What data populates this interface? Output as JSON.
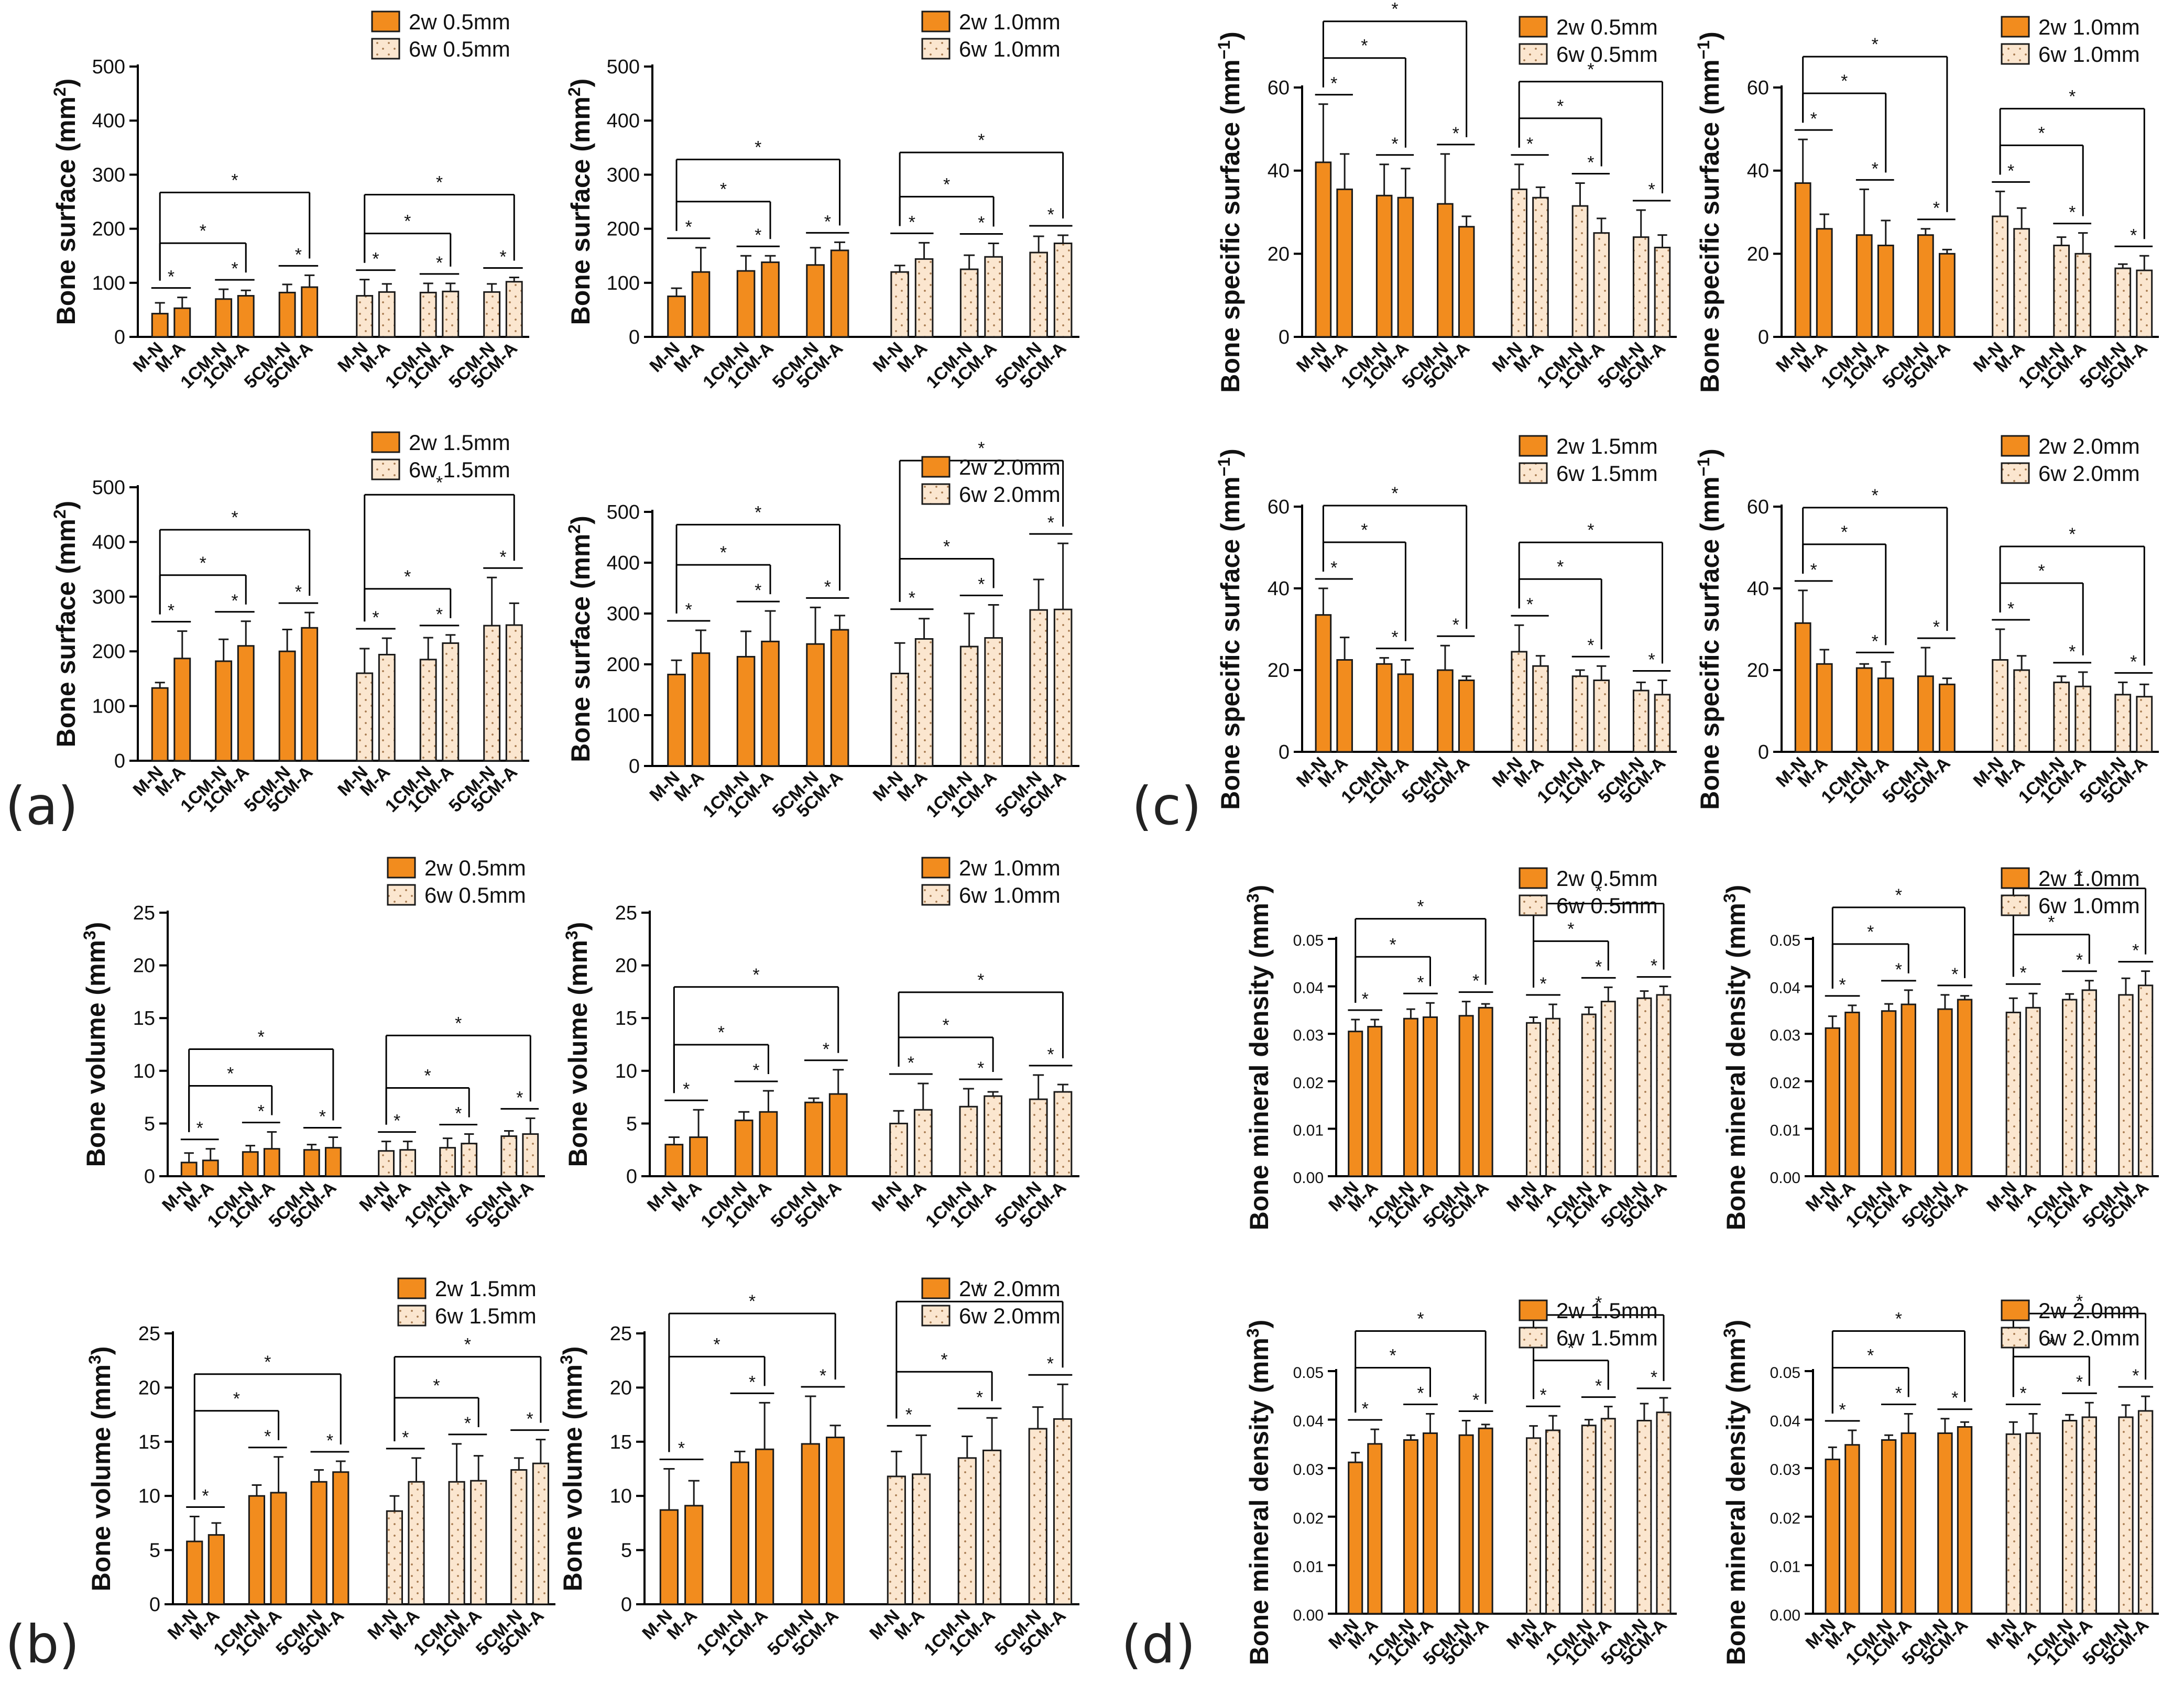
{
  "panel_letters": {
    "a": "(a)",
    "b": "(b)",
    "c": "(c)",
    "d": "(d)"
  },
  "colors": {
    "orange": "#f28c1e",
    "bar_outline": "#1a1a1a",
    "dotted_fill": "#fbe6cf",
    "dot": "#a77b50",
    "axis": "#000000"
  },
  "legend_entries": {
    "solid": "2w",
    "dotted": "6w"
  },
  "category_labels": [
    "M-N",
    "M-A",
    "1CM-N",
    "1CM-A",
    "5CM-N",
    "5CM-A",
    "M-N",
    "M-A",
    "1CM-N",
    "1CM-A",
    "5CM-N",
    "5CM-A"
  ],
  "chart_data": [
    {
      "id": "a1",
      "type": "bar",
      "panel": "a",
      "ylabel": "Bone surface (mm²)",
      "ylabel_base": "Bone surface (mm",
      "ylabel_sup": "2",
      "ylabel_tail": ")",
      "ylim": [
        0,
        500
      ],
      "yticks": [
        "0",
        "100",
        "200",
        "300",
        "400",
        "500"
      ],
      "legend": [
        "2w 0.5mm",
        "6w 0.5mm"
      ],
      "grid": false,
      "values": [
        43,
        53,
        70,
        76,
        82,
        92,
        76,
        83,
        82,
        84,
        83,
        102
      ],
      "errors": [
        20,
        20,
        18,
        10,
        15,
        22,
        30,
        15,
        17,
        15,
        15,
        8
      ]
    },
    {
      "id": "a2",
      "type": "bar",
      "panel": "a",
      "ylabel": "Bone surface (mm²)",
      "ylabel_base": "Bone surface (mm",
      "ylabel_sup": "2",
      "ylabel_tail": ")",
      "ylim": [
        0,
        500
      ],
      "yticks": [
        "0",
        "100",
        "200",
        "300",
        "400",
        "500"
      ],
      "legend": [
        "2w 1.0mm",
        "6w 1.0mm"
      ],
      "grid": false,
      "values": [
        75,
        120,
        122,
        138,
        133,
        160,
        120,
        144,
        125,
        148,
        156,
        173
      ],
      "errors": [
        15,
        45,
        28,
        12,
        32,
        15,
        12,
        30,
        26,
        25,
        30,
        15
      ]
    },
    {
      "id": "a3",
      "type": "bar",
      "panel": "a",
      "ylabel": "Bone surface (mm²)",
      "ylabel_base": "Bone surface (mm",
      "ylabel_sup": "2",
      "ylabel_tail": ")",
      "ylim": [
        0,
        500
      ],
      "yticks": [
        "0",
        "100",
        "200",
        "300",
        "400",
        "500"
      ],
      "legend": [
        "2w 1.5mm",
        "6w 1.5mm"
      ],
      "grid": false,
      "values": [
        133,
        187,
        182,
        210,
        200,
        243,
        160,
        194,
        185,
        215,
        247,
        248
      ],
      "errors": [
        10,
        50,
        40,
        45,
        40,
        28,
        45,
        30,
        40,
        15,
        88,
        40
      ]
    },
    {
      "id": "a4",
      "type": "bar",
      "panel": "a",
      "ylabel": "Bone surface (mm²)",
      "ylabel_base": "Bone surface (mm",
      "ylabel_sup": "2",
      "ylabel_tail": ")",
      "ylim": [
        0,
        500
      ],
      "yticks": [
        "0",
        "100",
        "200",
        "300",
        "400",
        "500"
      ],
      "legend": [
        "2w 2.0mm",
        "6w 2.0mm"
      ],
      "grid": false,
      "values": [
        180,
        222,
        215,
        245,
        240,
        268,
        182,
        250,
        235,
        252,
        307,
        308
      ],
      "errors": [
        28,
        45,
        50,
        60,
        72,
        28,
        60,
        40,
        65,
        65,
        60,
        130
      ]
    },
    {
      "id": "b1",
      "type": "bar",
      "panel": "b",
      "ylabel": "Bone volume (mm³)",
      "ylabel_base": "Bone volume (mm",
      "ylabel_sup": "3",
      "ylabel_tail": ")",
      "ylim": [
        0,
        25
      ],
      "yticks": [
        "0",
        "5",
        "10",
        "15",
        "20",
        "25"
      ],
      "legend": [
        "2w 0.5mm",
        "6w 0.5mm"
      ],
      "grid": false,
      "values": [
        1.3,
        1.5,
        2.3,
        2.6,
        2.5,
        2.7,
        2.4,
        2.5,
        2.7,
        3.1,
        3.8,
        4.0
      ],
      "errors": [
        0.9,
        1.1,
        0.6,
        1.6,
        0.5,
        1.0,
        0.9,
        0.8,
        0.9,
        0.9,
        0.5,
        1.5
      ]
    },
    {
      "id": "b2",
      "type": "bar",
      "panel": "b",
      "ylabel": "Bone volume (mm³)",
      "ylabel_base": "Bone volume (mm",
      "ylabel_sup": "3",
      "ylabel_tail": ")",
      "ylim": [
        0,
        25
      ],
      "yticks": [
        "0",
        "5",
        "10",
        "15",
        "20",
        "25"
      ],
      "legend": [
        "2w 1.0mm",
        "6w 1.0mm"
      ],
      "grid": false,
      "values": [
        3.0,
        3.7,
        5.3,
        6.1,
        7.0,
        7.8,
        5.0,
        6.3,
        6.6,
        7.6,
        7.3,
        8.0
      ],
      "errors": [
        0.7,
        2.6,
        0.8,
        2.0,
        0.4,
        2.3,
        1.2,
        2.5,
        1.7,
        0.4,
        2.3,
        0.7
      ]
    },
    {
      "id": "b3",
      "type": "bar",
      "panel": "b",
      "ylabel": "Bone volume (mm³)",
      "ylabel_base": "Bone volume (mm",
      "ylabel_sup": "3",
      "ylabel_tail": ")",
      "ylim": [
        0,
        25
      ],
      "yticks": [
        "0",
        "5",
        "10",
        "15",
        "20",
        "25"
      ],
      "legend": [
        "2w 1.5mm",
        "6w 1.5mm"
      ],
      "grid": false,
      "values": [
        5.8,
        6.4,
        10.0,
        10.3,
        11.3,
        12.2,
        8.6,
        11.3,
        11.3,
        11.4,
        12.4,
        13.0
      ],
      "errors": [
        2.3,
        1.1,
        1.0,
        3.3,
        1.1,
        1.0,
        1.4,
        2.2,
        3.5,
        2.3,
        1.1,
        2.2
      ]
    },
    {
      "id": "b4",
      "type": "bar",
      "panel": "b",
      "ylabel": "Bone volume (mm³)",
      "ylabel_base": "Bone volume (mm",
      "ylabel_sup": "3",
      "ylabel_tail": ")",
      "ylim": [
        0,
        25
      ],
      "yticks": [
        "0",
        "5",
        "10",
        "15",
        "20",
        "25"
      ],
      "legend": [
        "2w 2.0mm",
        "6w 2.0mm"
      ],
      "grid": false,
      "values": [
        8.7,
        9.1,
        13.1,
        14.3,
        14.8,
        15.4,
        11.8,
        12.0,
        13.5,
        14.2,
        16.2,
        17.1
      ],
      "errors": [
        3.8,
        2.3,
        1.0,
        4.3,
        4.4,
        1.1,
        2.3,
        3.6,
        2.0,
        3.0,
        2.0,
        3.2
      ]
    },
    {
      "id": "c1",
      "type": "bar",
      "panel": "c",
      "ylabel": "Bone specific surface (mm⁻¹)",
      "ylabel_base": "Bone specific surface (mm",
      "ylabel_sup": "−1",
      "ylabel_tail": ")",
      "ylim": [
        0,
        60
      ],
      "yticks": [
        "0",
        "20",
        "40",
        "60"
      ],
      "legend": [
        "2w 0.5mm",
        "6w 0.5mm"
      ],
      "grid": false,
      "values": [
        42,
        35.5,
        34,
        33.5,
        32,
        26.5,
        35.5,
        33.5,
        31.5,
        25,
        24,
        21.5
      ],
      "errors": [
        14,
        8.5,
        7.5,
        7,
        12,
        2.5,
        6,
        2.5,
        5.5,
        3.5,
        6.5,
        3
      ]
    },
    {
      "id": "c2",
      "type": "bar",
      "panel": "c",
      "ylabel": "Bone specific surface (mm⁻¹)",
      "ylabel_base": "Bone specific surface (mm",
      "ylabel_sup": "−1",
      "ylabel_tail": ")",
      "ylim": [
        0,
        60
      ],
      "yticks": [
        "0",
        "20",
        "40",
        "60"
      ],
      "legend": [
        "2w 1.0mm",
        "6w 1.0mm"
      ],
      "grid": false,
      "values": [
        37,
        26,
        24.5,
        22,
        24.5,
        20,
        29,
        26,
        22,
        20,
        16.5,
        16
      ],
      "errors": [
        10.5,
        3.5,
        11,
        6,
        1.5,
        1,
        6,
        5,
        2,
        5,
        1,
        3.5
      ]
    },
    {
      "id": "c3",
      "type": "bar",
      "panel": "c",
      "ylabel": "Bone specific surface (mm⁻¹)",
      "ylabel_base": "Bone specific surface (mm",
      "ylabel_sup": "−1",
      "ylabel_tail": ")",
      "ylim": [
        0,
        60
      ],
      "yticks": [
        "0",
        "20",
        "40",
        "60"
      ],
      "legend": [
        "2w 1.5mm",
        "6w 1.5mm"
      ],
      "grid": false,
      "values": [
        33.5,
        22.5,
        21.5,
        19,
        20,
        17.5,
        24.5,
        21,
        18.5,
        17.5,
        15,
        14
      ],
      "errors": [
        6.5,
        5.5,
        1.5,
        3.5,
        6,
        1,
        6.5,
        2.5,
        1.5,
        3.5,
        2,
        3.5
      ]
    },
    {
      "id": "c4",
      "type": "bar",
      "panel": "c",
      "ylabel": "Bone specific surface (mm⁻¹)",
      "ylabel_base": "Bone specific surface (mm",
      "ylabel_sup": "−1",
      "ylabel_tail": ")",
      "ylim": [
        0,
        60
      ],
      "yticks": [
        "0",
        "20",
        "40",
        "60"
      ],
      "legend": [
        "2w 2.0mm",
        "6w 2.0mm"
      ],
      "grid": false,
      "values": [
        31.5,
        21.5,
        20.5,
        18,
        18.5,
        16.5,
        22.5,
        20,
        17,
        16,
        14,
        13.5
      ],
      "errors": [
        8,
        3.5,
        1,
        4,
        7,
        1.5,
        7.5,
        3.5,
        1.5,
        3.5,
        3,
        3
      ]
    },
    {
      "id": "d1",
      "type": "bar",
      "panel": "d",
      "ylabel": "Bone mineral density (mm³)",
      "ylabel_base": "Bone mineral density (mm",
      "ylabel_sup": "3",
      "ylabel_tail": ")",
      "ylim": [
        0,
        0.05
      ],
      "yticks": [
        "0.00",
        "0.01",
        "0.02",
        "0.03",
        "0.04",
        "0.05"
      ],
      "legend": [
        "2w 0.5mm",
        "6w 0.5mm"
      ],
      "grid": false,
      "values": [
        0.0305,
        0.0315,
        0.0332,
        0.0335,
        0.0338,
        0.0355,
        0.0323,
        0.0332,
        0.0341,
        0.0368,
        0.0375,
        0.0382
      ],
      "errors": [
        0.0025,
        0.0015,
        0.002,
        0.003,
        0.003,
        0.0008,
        0.0012,
        0.003,
        0.0015,
        0.003,
        0.0015,
        0.0018
      ]
    },
    {
      "id": "d2",
      "type": "bar",
      "panel": "d",
      "ylabel": "Bone mineral density (mm³)",
      "ylabel_base": "Bone mineral density (mm",
      "ylabel_sup": "3",
      "ylabel_tail": ")",
      "ylim": [
        0,
        0.05
      ],
      "yticks": [
        "0.00",
        "0.01",
        "0.02",
        "0.03",
        "0.04",
        "0.05"
      ],
      "legend": [
        "2w 1.0mm",
        "6w 1.0mm"
      ],
      "grid": false,
      "values": [
        0.0312,
        0.0345,
        0.0348,
        0.0362,
        0.0352,
        0.0372,
        0.0345,
        0.0355,
        0.0372,
        0.0392,
        0.0382,
        0.0402
      ],
      "errors": [
        0.0025,
        0.0015,
        0.0015,
        0.003,
        0.003,
        0.0008,
        0.003,
        0.003,
        0.0012,
        0.002,
        0.0035,
        0.003
      ]
    },
    {
      "id": "d3",
      "type": "bar",
      "panel": "d",
      "ylabel": "Bone mineral density (mm³)",
      "ylabel_base": "Bone mineral density (mm",
      "ylabel_sup": "3",
      "ylabel_tail": ")",
      "ylim": [
        0,
        0.05
      ],
      "yticks": [
        "0.00",
        "0.01",
        "0.02",
        "0.03",
        "0.04",
        "0.05"
      ],
      "legend": [
        "2w 1.5mm",
        "6w 1.5mm"
      ],
      "grid": false,
      "values": [
        0.0312,
        0.035,
        0.0358,
        0.0372,
        0.0368,
        0.0382,
        0.0362,
        0.0378,
        0.0388,
        0.0402,
        0.0398,
        0.0415
      ],
      "errors": [
        0.002,
        0.003,
        0.001,
        0.004,
        0.003,
        0.0008,
        0.0025,
        0.003,
        0.0012,
        0.0025,
        0.0035,
        0.003
      ]
    },
    {
      "id": "d4",
      "type": "bar",
      "panel": "d",
      "ylabel": "Bone mineral density (mm³)",
      "ylabel_base": "Bone mineral density (mm",
      "ylabel_sup": "3",
      "ylabel_tail": ")",
      "ylim": [
        0,
        0.05
      ],
      "yticks": [
        "0.00",
        "0.01",
        "0.02",
        "0.03",
        "0.04",
        "0.05"
      ],
      "legend": [
        "2w 2.0mm",
        "6w 2.0mm"
      ],
      "grid": false,
      "values": [
        0.0318,
        0.0348,
        0.0358,
        0.0372,
        0.0372,
        0.0385,
        0.037,
        0.0372,
        0.0398,
        0.0405,
        0.0405,
        0.0418
      ],
      "errors": [
        0.0025,
        0.003,
        0.001,
        0.004,
        0.003,
        0.001,
        0.0025,
        0.004,
        0.0012,
        0.003,
        0.0025,
        0.003
      ]
    }
  ]
}
